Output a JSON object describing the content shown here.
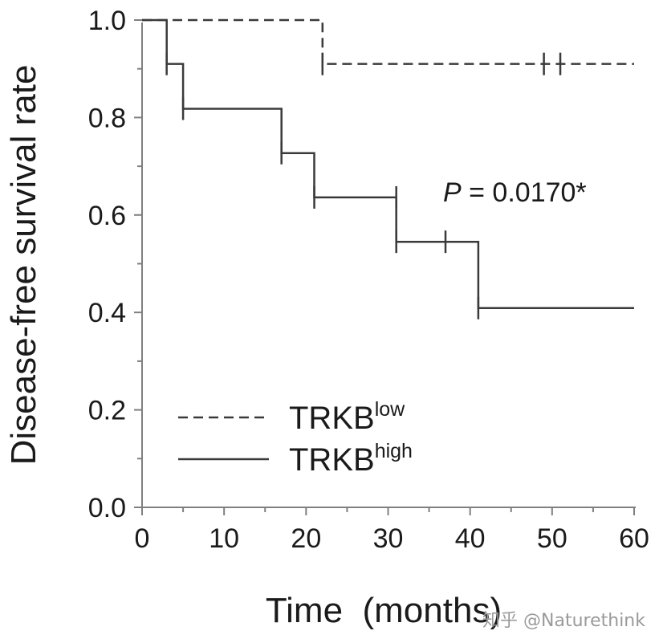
{
  "chart_data": {
    "type": "line",
    "subtype": "kaplan-meier step",
    "ylabel": "Disease-free survival rate",
    "xlabel": "Time  (months)",
    "xlim": [
      0,
      60
    ],
    "ylim": [
      0,
      1.0
    ],
    "x_ticks": [
      "0",
      "10",
      "20",
      "30",
      "40",
      "50",
      "60"
    ],
    "x_tick_values": [
      0,
      10,
      20,
      30,
      40,
      50,
      60
    ],
    "y_ticks": [
      "0.0",
      "0.2",
      "0.4",
      "0.6",
      "0.8",
      "1.0"
    ],
    "y_tick_values": [
      0,
      0.2,
      0.4,
      0.6,
      0.8,
      1.0
    ],
    "annotation": {
      "p_label": "P",
      "p_text": " = 0.0170*",
      "x": 37,
      "y": 0.62
    },
    "legend": {
      "position": "bottom-left",
      "entries": [
        {
          "base": "TRKB",
          "sup": "low",
          "style": "dashed"
        },
        {
          "base": "TRKB",
          "sup": "high",
          "style": "solid"
        }
      ]
    },
    "series": [
      {
        "name": "TRKB low",
        "style": "dashed",
        "points": [
          [
            0,
            1.0
          ],
          [
            22,
            1.0
          ],
          [
            22,
            0.91
          ],
          [
            60,
            0.91
          ]
        ],
        "censored": [
          [
            22,
            0.91
          ],
          [
            49,
            0.91
          ],
          [
            51,
            0.91
          ]
        ]
      },
      {
        "name": "TRKB high",
        "style": "solid",
        "points": [
          [
            0,
            1.0
          ],
          [
            3,
            1.0
          ],
          [
            3,
            0.91
          ],
          [
            5,
            0.91
          ],
          [
            5,
            0.818
          ],
          [
            17,
            0.818
          ],
          [
            17,
            0.727
          ],
          [
            21,
            0.727
          ],
          [
            21,
            0.636
          ],
          [
            31,
            0.636
          ],
          [
            31,
            0.545
          ],
          [
            41,
            0.545
          ],
          [
            41,
            0.409
          ],
          [
            60,
            0.409
          ]
        ],
        "censored": [
          [
            3,
            0.91
          ],
          [
            5,
            0.818
          ],
          [
            17,
            0.727
          ],
          [
            21,
            0.636
          ],
          [
            31,
            0.636
          ],
          [
            31,
            0.545
          ],
          [
            37,
            0.545
          ],
          [
            41,
            0.409
          ]
        ]
      }
    ]
  },
  "watermark": "知乎 @Naturethink"
}
